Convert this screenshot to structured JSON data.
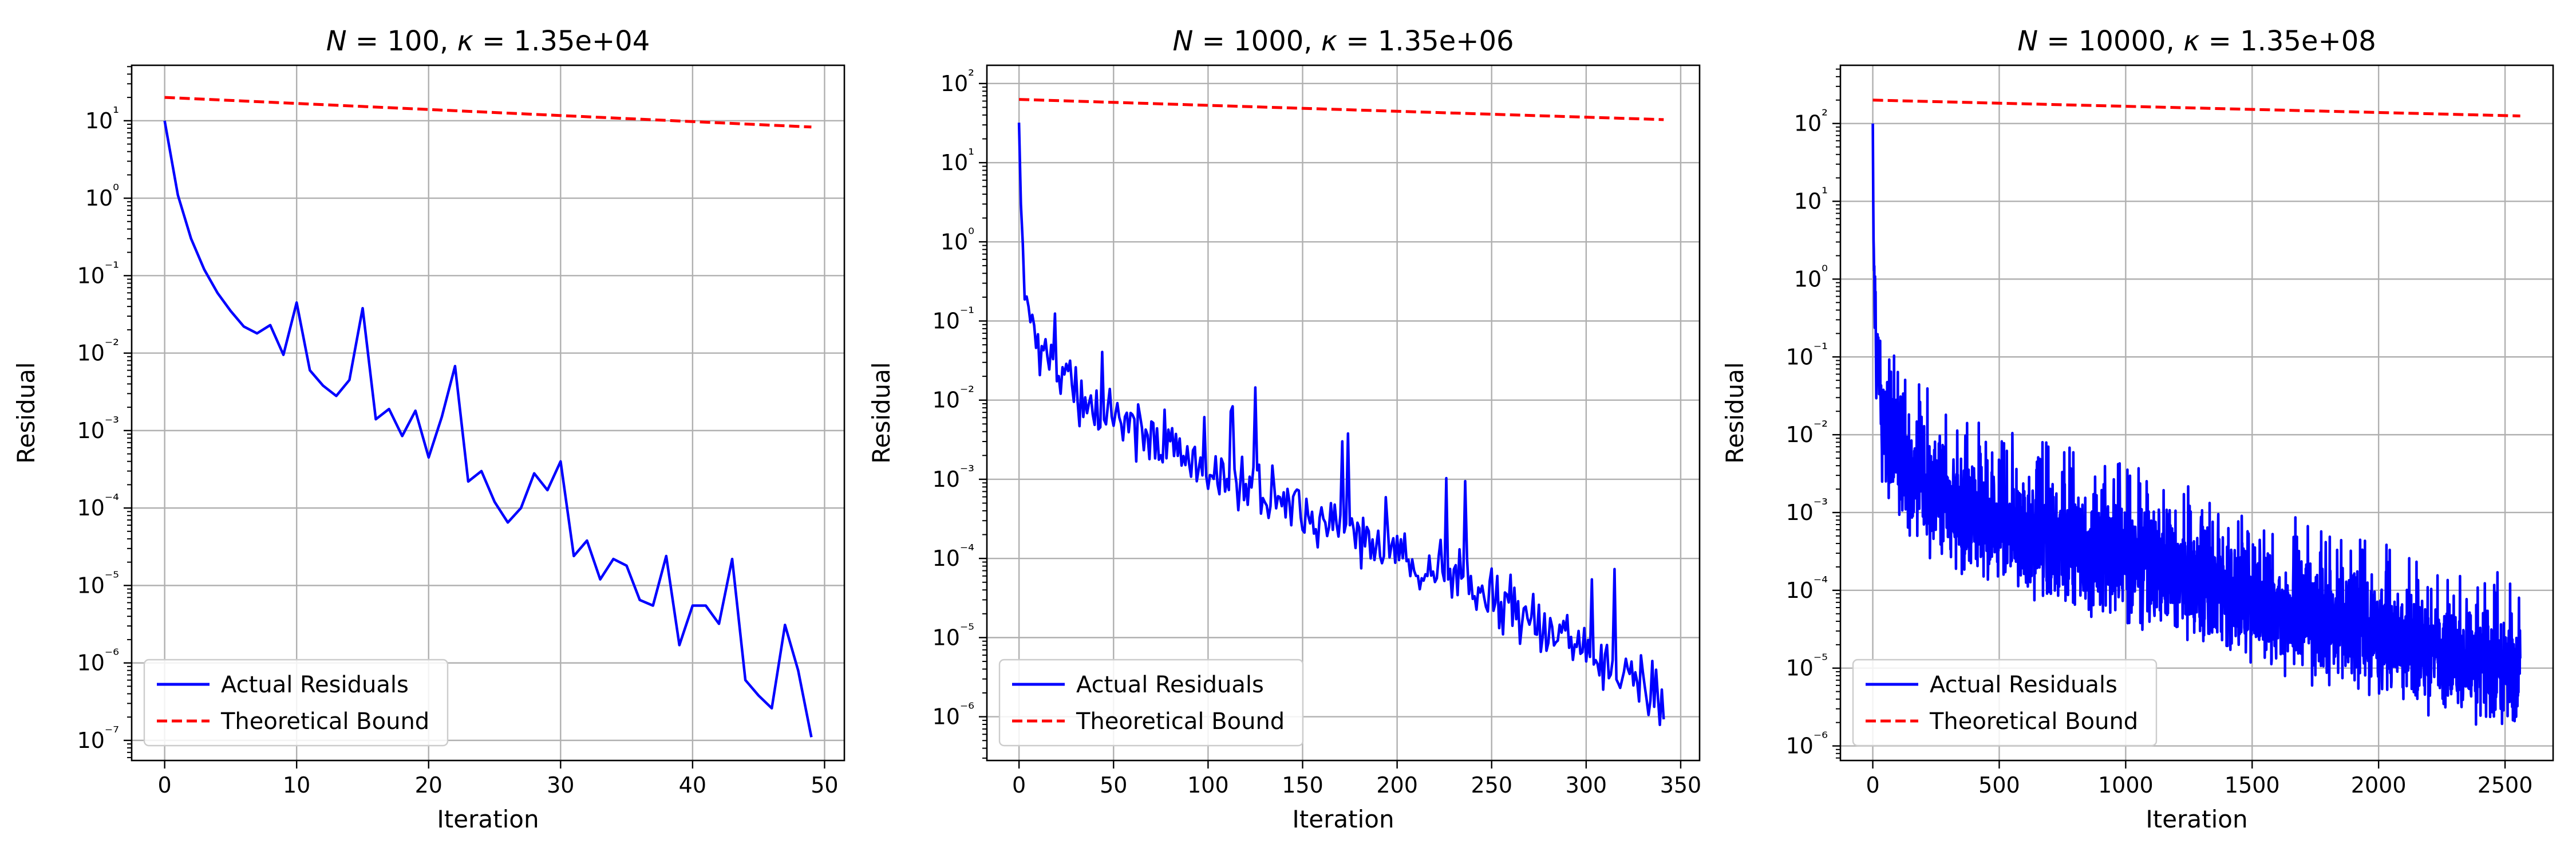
{
  "colors": {
    "actual": "#0000ff",
    "bound": "#ff0000",
    "grid": "#b0b0b0",
    "axes": "#000000",
    "legend_frame": "#cccccc"
  },
  "chart_data": [
    {
      "type": "line",
      "title": "N = 100, κ = 1.35e+04",
      "title_parts": {
        "n_label": "N",
        "n_value": "100",
        "kappa_label": "κ",
        "kappa_value": "1.35e+04"
      },
      "xlabel": "Iteration",
      "ylabel": "Residual",
      "yscale": "log",
      "xlim": [
        -2.5,
        51.5
      ],
      "ylim": [
        5.5e-08,
        52
      ],
      "xticks": [
        0,
        10,
        20,
        30,
        40,
        50
      ],
      "yticks": [
        -7,
        -6,
        -5,
        -4,
        -3,
        -2,
        -1,
        0,
        1
      ],
      "grid": true,
      "legend": {
        "placement": "lower-left",
        "entries": [
          "Actual Residuals",
          "Theoretical Bound"
        ]
      },
      "series": [
        {
          "name": "Actual Residuals",
          "style": "solid",
          "kind": "points",
          "x": [
            0,
            1,
            2,
            3,
            4,
            5,
            6,
            7,
            8,
            9,
            10,
            11,
            12,
            13,
            14,
            15,
            16,
            17,
            18,
            19,
            20,
            21,
            22,
            23,
            24,
            25,
            26,
            27,
            28,
            29,
            30,
            31,
            32,
            33,
            34,
            35,
            36,
            37,
            38,
            39,
            40,
            41,
            42,
            43,
            44,
            45,
            46,
            47,
            48,
            49
          ],
          "y": [
            10,
            1.1,
            0.3,
            0.12,
            0.06,
            0.035,
            0.022,
            0.018,
            0.023,
            0.0095,
            0.045,
            0.006,
            0.0038,
            0.0028,
            0.0045,
            0.038,
            0.0014,
            0.0019,
            0.00085,
            0.0018,
            0.00045,
            0.0015,
            0.0068,
            0.00022,
            0.0003,
            0.00012,
            6.5e-05,
            0.0001,
            0.00028,
            0.00017,
            0.0004,
            2.4e-05,
            3.8e-05,
            1.2e-05,
            2.2e-05,
            1.8e-05,
            6.5e-06,
            5.5e-06,
            2.4e-05,
            1.7e-06,
            5.5e-06,
            5.5e-06,
            3.2e-06,
            2.2e-05,
            6e-07,
            3.8e-07,
            2.6e-07,
            3.1e-06,
            8e-07,
            1.1e-07
          ]
        },
        {
          "name": "Theoretical Bound",
          "style": "dashed",
          "kind": "exponential",
          "x_start": 0,
          "x_end": 49,
          "y_start": 20,
          "y_end": 8.3
        }
      ]
    },
    {
      "type": "line",
      "title": "N = 1000, κ = 1.35e+06",
      "title_parts": {
        "n_label": "N",
        "n_value": "1000",
        "kappa_label": "κ",
        "kappa_value": "1.35e+06"
      },
      "xlabel": "Iteration",
      "ylabel": "Residual",
      "yscale": "log",
      "xlim": [
        -17,
        360
      ],
      "ylim": [
        2.8e-07,
        170
      ],
      "xticks": [
        0,
        50,
        100,
        150,
        200,
        250,
        300,
        350
      ],
      "yticks": [
        -6,
        -5,
        -4,
        -3,
        -2,
        -1,
        0,
        1,
        2
      ],
      "grid": true,
      "legend": {
        "placement": "lower-left",
        "entries": [
          "Actual Residuals",
          "Theoretical Bound"
        ]
      },
      "series": [
        {
          "name": "Actual Residuals",
          "style": "solid",
          "kind": "noisy",
          "x_end": 341,
          "anchors": [
            [
              0,
              32
            ],
            [
              1,
              3
            ],
            [
              3,
              0.3
            ],
            [
              6,
              0.1
            ],
            [
              10,
              0.05
            ],
            [
              20,
              0.02
            ],
            [
              40,
              0.008
            ],
            [
              60,
              0.004
            ],
            [
              100,
              0.0015
            ],
            [
              150,
              0.0004
            ],
            [
              200,
              0.00012
            ],
            [
              250,
              3e-05
            ],
            [
              300,
              8e-06
            ],
            [
              341,
              1.5e-06
            ]
          ],
          "spread_down": 0.5,
          "spread_up": 0.35,
          "spikes": 0.1,
          "spike_max": 1.4,
          "seed": 3
        },
        {
          "name": "Theoretical Bound",
          "style": "dashed",
          "kind": "exponential",
          "x_start": 0,
          "x_end": 341,
          "y_start": 63,
          "y_end": 35
        }
      ]
    },
    {
      "type": "line",
      "title": "N = 10000, κ = 1.35e+08",
      "title_parts": {
        "n_label": "N",
        "n_value": "10000",
        "kappa_label": "κ",
        "kappa_value": "1.35e+08"
      },
      "xlabel": "Iteration",
      "ylabel": "Residual",
      "yscale": "log",
      "xlim": [
        -128,
        2690
      ],
      "ylim": [
        6.5e-07,
        560
      ],
      "xticks": [
        0,
        500,
        1000,
        1500,
        2000,
        2500
      ],
      "yticks": [
        -6,
        -5,
        -4,
        -3,
        -2,
        -1,
        0,
        1,
        2
      ],
      "grid": true,
      "legend": {
        "placement": "lower-left",
        "entries": [
          "Actual Residuals",
          "Theoretical Bound"
        ]
      },
      "series": [
        {
          "name": "Actual Residuals",
          "style": "solid",
          "kind": "noisy",
          "x_end": 2560,
          "anchors": [
            [
              0,
              100
            ],
            [
              3,
              3
            ],
            [
              10,
              0.3
            ],
            [
              30,
              0.02
            ],
            [
              60,
              0.008
            ],
            [
              150,
              0.003
            ],
            [
              300,
              0.0012
            ],
            [
              500,
              0.0006
            ],
            [
              800,
              0.00035
            ],
            [
              1000,
              0.00022
            ],
            [
              1500,
              7e-05
            ],
            [
              2000,
              2.5e-05
            ],
            [
              2560,
              7e-06
            ]
          ],
          "spread_down": 0.9,
          "spread_up": 0.7,
          "spikes": 0.12,
          "spike_max": 1.3,
          "seed": 11
        },
        {
          "name": "Theoretical Bound",
          "style": "dashed",
          "kind": "exponential",
          "x_start": 0,
          "x_end": 2560,
          "y_start": 200,
          "y_end": 125
        }
      ]
    }
  ]
}
